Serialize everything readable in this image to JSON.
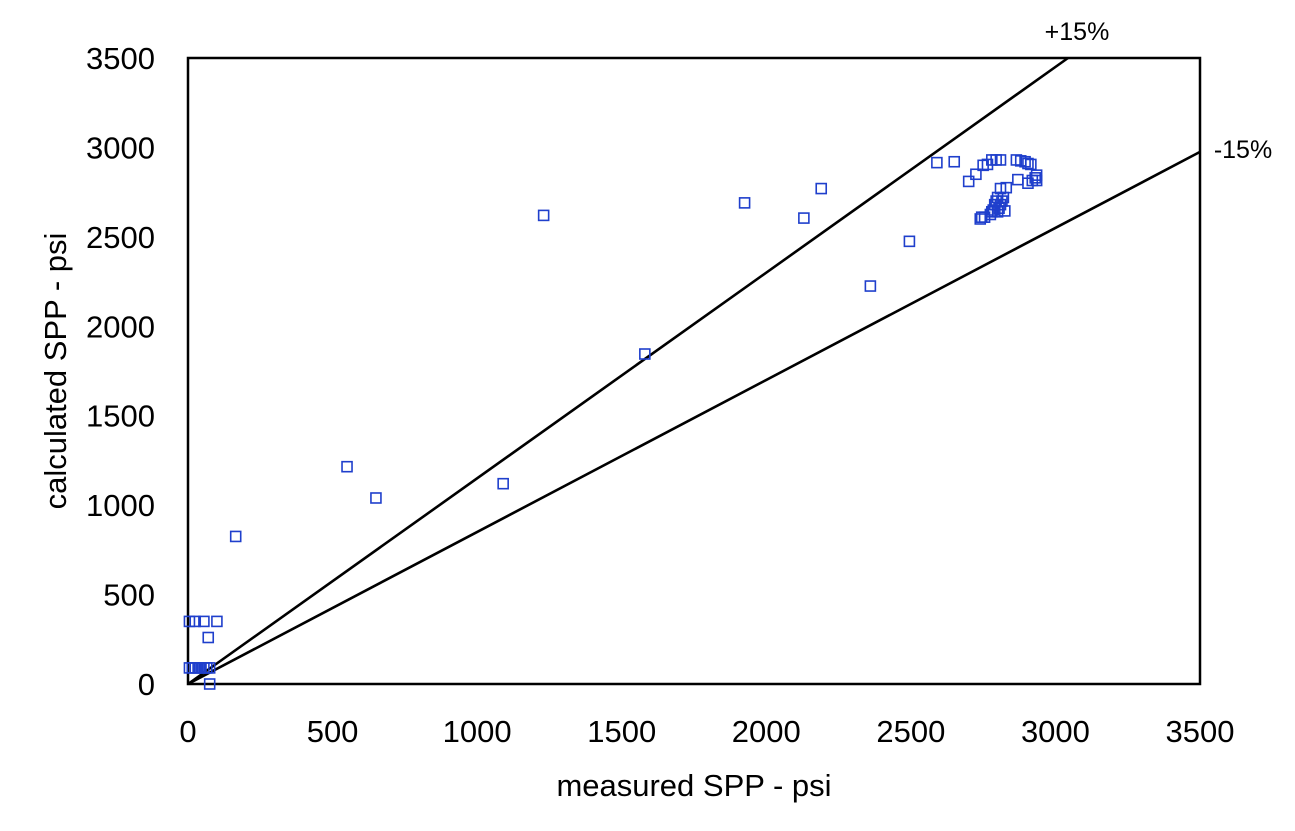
{
  "chart_data": {
    "type": "scatter",
    "title": "",
    "xlabel": "measured SPP - psi",
    "ylabel": "calculated SPP - psi",
    "xlim": [
      0,
      3500
    ],
    "ylim": [
      0,
      3500
    ],
    "xticks": [
      "0",
      "500",
      "1000",
      "1500",
      "2000",
      "2500",
      "3000",
      "3500"
    ],
    "yticks": [
      "0",
      "500",
      "1000",
      "1500",
      "2000",
      "2500",
      "3000",
      "3500"
    ],
    "grid": false,
    "legend": "none",
    "marker": "hollow-square",
    "marker_color": "#1f3fcc",
    "line_color": "#000000",
    "reference_lines": [
      {
        "label": "+15%",
        "slope": 1.15
      },
      {
        "label": "-15%",
        "slope": 0.85
      }
    ],
    "series": [
      {
        "points": [
          [
            5,
            90
          ],
          [
            15,
            90
          ],
          [
            25,
            90
          ],
          [
            35,
            90
          ],
          [
            45,
            90
          ],
          [
            55,
            90
          ],
          [
            65,
            90
          ],
          [
            75,
            90
          ],
          [
            5,
            350
          ],
          [
            25,
            350
          ],
          [
            55,
            350
          ],
          [
            100,
            350
          ],
          [
            70,
            260
          ],
          [
            75,
            0
          ],
          [
            165,
            825
          ],
          [
            550,
            1215
          ],
          [
            650,
            1040
          ],
          [
            1090,
            1120
          ],
          [
            1230,
            2620
          ],
          [
            1580,
            1845
          ],
          [
            1925,
            2690
          ],
          [
            2130,
            2605
          ],
          [
            2190,
            2770
          ],
          [
            2360,
            2225
          ],
          [
            2495,
            2475
          ],
          [
            2590,
            2915
          ],
          [
            2650,
            2920
          ],
          [
            2700,
            2810
          ],
          [
            2725,
            2850
          ],
          [
            2740,
            2600
          ],
          [
            2745,
            2610
          ],
          [
            2755,
            2610
          ],
          [
            2750,
            2900
          ],
          [
            2765,
            2905
          ],
          [
            2775,
            2625
          ],
          [
            2780,
            2640
          ],
          [
            2785,
            2650
          ],
          [
            2790,
            2680
          ],
          [
            2795,
            2700
          ],
          [
            2800,
            2720
          ],
          [
            2780,
            2930
          ],
          [
            2795,
            2930
          ],
          [
            2810,
            2930
          ],
          [
            2800,
            2640
          ],
          [
            2805,
            2660
          ],
          [
            2810,
            2680
          ],
          [
            2815,
            2700
          ],
          [
            2820,
            2720
          ],
          [
            2825,
            2645
          ],
          [
            2810,
            2770
          ],
          [
            2830,
            2775
          ],
          [
            2865,
            2930
          ],
          [
            2880,
            2925
          ],
          [
            2895,
            2920
          ],
          [
            2905,
            2910
          ],
          [
            2915,
            2905
          ],
          [
            2870,
            2820
          ],
          [
            2905,
            2800
          ],
          [
            2920,
            2815
          ],
          [
            2930,
            2830
          ],
          [
            2935,
            2845
          ],
          [
            2935,
            2815
          ]
        ]
      }
    ]
  }
}
